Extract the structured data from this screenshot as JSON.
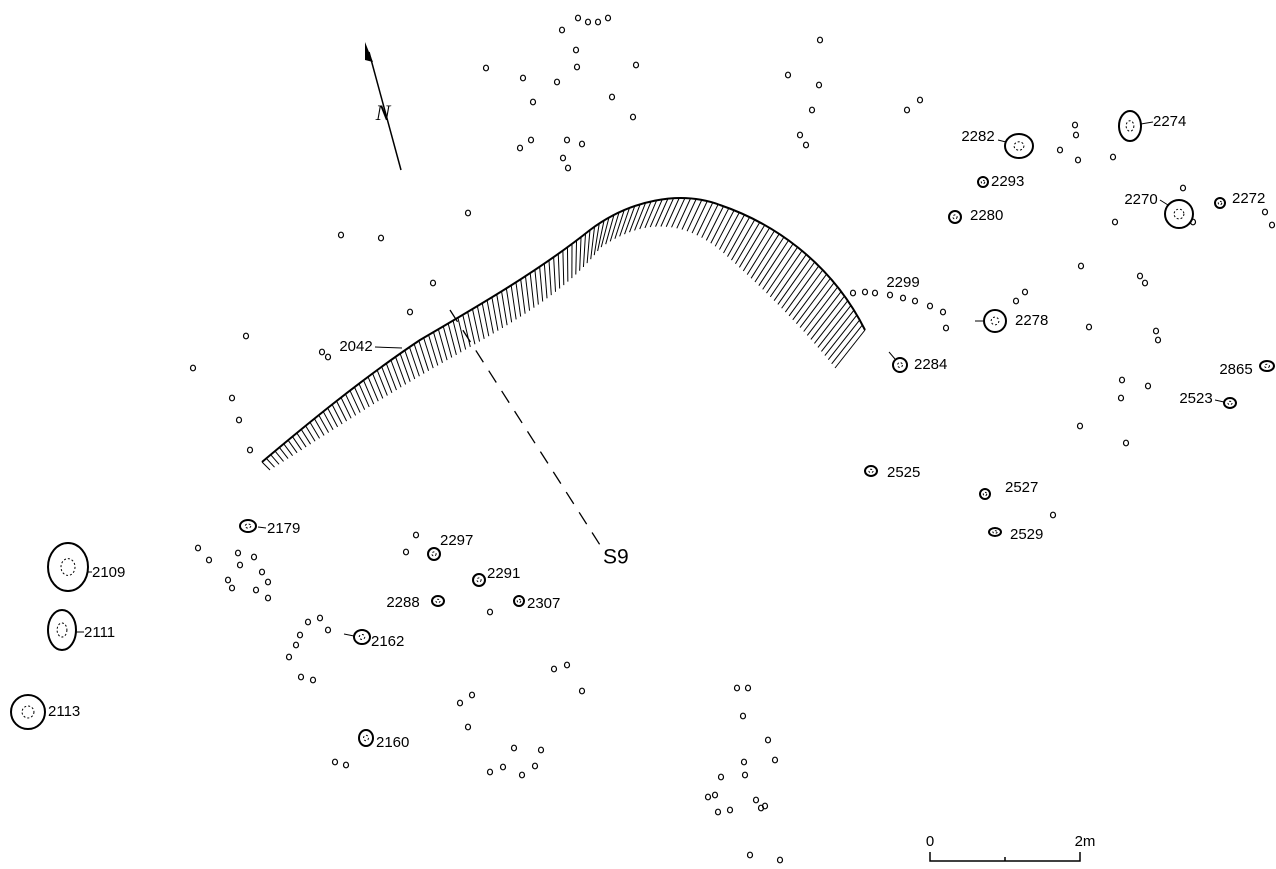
{
  "north": "N",
  "section": "S9",
  "features": [
    {
      "label": "2042"
    },
    {
      "label": "2179"
    },
    {
      "label": "2109"
    },
    {
      "label": "2111"
    },
    {
      "label": "2113"
    },
    {
      "label": "2297"
    },
    {
      "label": "2291"
    },
    {
      "label": "2288"
    },
    {
      "label": "2307"
    },
    {
      "label": "2162"
    },
    {
      "label": "2160"
    },
    {
      "label": "2299"
    },
    {
      "label": "2284"
    },
    {
      "label": "2278"
    },
    {
      "label": "2282"
    },
    {
      "label": "2274"
    },
    {
      "label": "2293"
    },
    {
      "label": "2280"
    },
    {
      "label": "2270"
    },
    {
      "label": "2272"
    },
    {
      "label": "2865"
    },
    {
      "label": "2523"
    },
    {
      "label": "2525"
    },
    {
      "label": "2527"
    },
    {
      "label": "2529"
    }
  ],
  "scale": {
    "start": "0",
    "end": "2m"
  }
}
